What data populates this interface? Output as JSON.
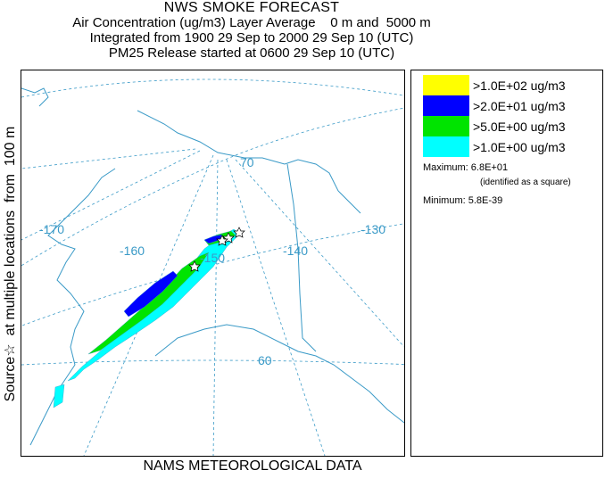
{
  "title": {
    "main": "NWS SMOKE FORECAST",
    "line2": "Air Concentration (ug/m3) Layer Average    0 m and  5000 m",
    "line3": "Integrated from 1900 29 Sep to 2000 29 Sep 10 (UTC)",
    "line4": "PM25 Release started at 0600 29 Sep 10 (UTC)"
  },
  "side_label": "Source☆  at multiple locations  from  100 m",
  "footer": "NAMS METEOROLOGICAL DATA",
  "legend": {
    "entries": [
      {
        "label": ">1.0E+02 ug/m3",
        "color": "#ffff00"
      },
      {
        "label": ">2.0E+01 ug/m3",
        "color": "#0000ff"
      },
      {
        "label": ">5.0E+00 ug/m3",
        "color": "#00e400"
      },
      {
        "label": ">1.0E+00 ug/m3",
        "color": "#00ffff"
      }
    ],
    "maximum": "Maximum: 6.8E+01",
    "maximum_note": "(identified as a square)",
    "minimum": "Minimum: 5.8E-39"
  },
  "map": {
    "lon_labels": [
      "-170",
      "-160",
      "-150",
      "-140",
      "-130"
    ],
    "lat_labels": [
      "70",
      "60"
    ],
    "colors": {
      "graticule": "#3a9ac7",
      "coast": "#3a9ac7",
      "cyan": "#00ffff",
      "green": "#00e400",
      "blue": "#0000ff"
    }
  }
}
